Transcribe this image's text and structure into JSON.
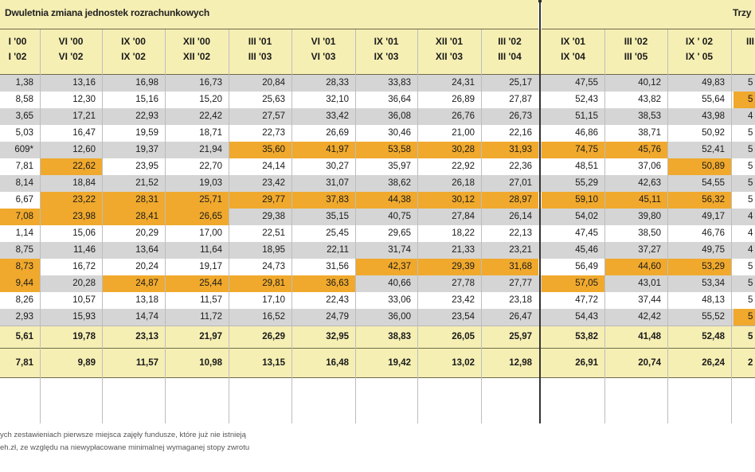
{
  "header": {
    "left_title": "Dwuletnia zmiana jednostek rozrachunkowych",
    "right_title": "Trzy"
  },
  "columns": [
    [
      "I '00",
      "I '02"
    ],
    [
      "VI '00",
      "VI '02"
    ],
    [
      "IX '00",
      "IX '02"
    ],
    [
      "XII '00",
      "XII '02"
    ],
    [
      "III '01",
      "III '03"
    ],
    [
      "VI '01",
      "VI '03"
    ],
    [
      "IX '01",
      "IX '03"
    ],
    [
      "XII '01",
      "XII '03"
    ],
    [
      "III '02",
      "III '04"
    ],
    [
      "IX '01",
      "IX '04"
    ],
    [
      "III '02",
      "III '05"
    ],
    [
      "IX ' 02",
      "IX ' 05"
    ],
    [
      "III",
      ""
    ]
  ],
  "rows": [
    {
      "cells": [
        "1,38",
        "13,16",
        "16,98",
        "16,73",
        "20,84",
        "28,33",
        "33,83",
        "24,31",
        "25,17",
        "47,55",
        "40,12",
        "49,83",
        "5"
      ],
      "hl": []
    },
    {
      "cells": [
        "8,58",
        "12,30",
        "15,16",
        "15,20",
        "25,63",
        "32,10",
        "36,64",
        "26,89",
        "27,87",
        "52,43",
        "43,82",
        "55,64",
        "5"
      ],
      "hl": [
        12
      ]
    },
    {
      "cells": [
        "3,65",
        "17,21",
        "22,93",
        "22,42",
        "27,57",
        "33,42",
        "36,08",
        "26,76",
        "26,73",
        "51,15",
        "38,53",
        "43,98",
        "4"
      ],
      "hl": []
    },
    {
      "cells": [
        "5,03",
        "16,47",
        "19,59",
        "18,71",
        "22,73",
        "26,69",
        "30,46",
        "21,00",
        "22,16",
        "46,86",
        "38,71",
        "50,92",
        "5"
      ],
      "hl": []
    },
    {
      "cells": [
        "609*",
        "12,60",
        "19,37",
        "21,94",
        "35,60",
        "41,97",
        "53,58",
        "30,28",
        "31,93",
        "74,75",
        "45,76",
        "52,41",
        "5"
      ],
      "hl": [
        4,
        5,
        6,
        7,
        8,
        9,
        10
      ]
    },
    {
      "cells": [
        "7,81",
        "22,62",
        "23,95",
        "22,70",
        "24,14",
        "30,27",
        "35,97",
        "22,92",
        "22,36",
        "48,51",
        "37,06",
        "50,89",
        "5"
      ],
      "hl": [
        1,
        11
      ]
    },
    {
      "cells": [
        "8,14",
        "18,84",
        "21,52",
        "19,03",
        "23,42",
        "31,07",
        "38,62",
        "26,18",
        "27,01",
        "55,29",
        "42,63",
        "54,55",
        "5"
      ],
      "hl": []
    },
    {
      "cells": [
        "6,67",
        "23,22",
        "28,31",
        "25,71",
        "29,77",
        "37,83",
        "44,38",
        "30,12",
        "28,97",
        "59,10",
        "45,11",
        "56,32",
        "5"
      ],
      "hl": [
        1,
        2,
        3,
        4,
        5,
        6,
        7,
        8,
        9,
        10,
        11
      ]
    },
    {
      "cells": [
        "7,08",
        "23,98",
        "28,41",
        "26,65",
        "29,38",
        "35,15",
        "40,75",
        "27,84",
        "26,14",
        "54,02",
        "39,80",
        "49,17",
        "4"
      ],
      "hl": [
        0,
        1,
        2,
        3
      ]
    },
    {
      "cells": [
        "1,14",
        "15,06",
        "20,29",
        "17,00",
        "22,51",
        "25,45",
        "29,65",
        "18,22",
        "22,13",
        "47,45",
        "38,50",
        "46,76",
        "4"
      ],
      "hl": []
    },
    {
      "cells": [
        "8,75",
        "11,46",
        "13,64",
        "11,64",
        "18,95",
        "22,11",
        "31,74",
        "21,33",
        "23,21",
        "45,46",
        "37,27",
        "49,75",
        "4"
      ],
      "hl": []
    },
    {
      "cells": [
        "8,73",
        "16,72",
        "20,24",
        "19,17",
        "24,73",
        "31,56",
        "42,37",
        "29,39",
        "31,68",
        "56,49",
        "44,60",
        "53,29",
        "5"
      ],
      "hl": [
        0,
        6,
        7,
        8,
        10,
        11
      ]
    },
    {
      "cells": [
        "9,44",
        "20,28",
        "24,87",
        "25,44",
        "29,81",
        "36,63",
        "40,66",
        "27,78",
        "27,77",
        "57,05",
        "43,01",
        "53,34",
        "5"
      ],
      "hl": [
        0,
        2,
        3,
        4,
        5,
        9
      ]
    },
    {
      "cells": [
        "8,26",
        "10,57",
        "13,18",
        "11,57",
        "17,10",
        "22,43",
        "33,06",
        "23,42",
        "23,18",
        "47,72",
        "37,44",
        "48,13",
        "5"
      ],
      "hl": []
    },
    {
      "cells": [
        "2,93",
        "15,93",
        "14,74",
        "11,72",
        "16,52",
        "24,79",
        "36,00",
        "23,54",
        "26,47",
        "54,43",
        "42,42",
        "55,52",
        "5"
      ],
      "hl": [
        12
      ]
    }
  ],
  "summary": [
    [
      "5,61",
      "19,78",
      "23,13",
      "21,97",
      "26,29",
      "32,95",
      "38,83",
      "26,05",
      "25,97",
      "53,82",
      "41,48",
      "52,48",
      "5"
    ],
    [
      "7,81",
      "9,89",
      "11,57",
      "10,98",
      "13,15",
      "16,48",
      "19,42",
      "13,02",
      "12,98",
      "26,91",
      "20,74",
      "26,24",
      "2"
    ]
  ],
  "footnotes": [
    "ych zestawieniach pierwsze miejsca zajęły fundusze, które już nie istnieją",
    "eh.zł, ze względu na niewypłacowane minimalnej wymaganej stopy zwrotu"
  ]
}
